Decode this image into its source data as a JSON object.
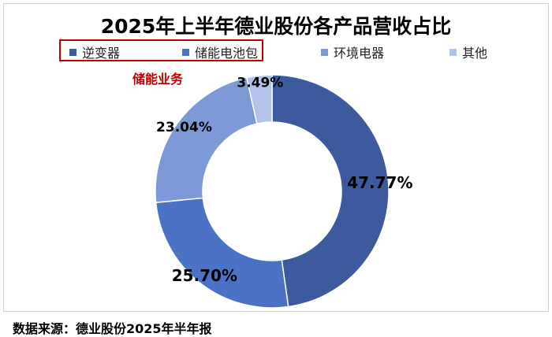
{
  "chart_data": {
    "type": "pie",
    "title": "2025年上半年德业股份各产品营收占比",
    "categories": [
      "逆变器",
      "储能电池包",
      "环境电器",
      "其他"
    ],
    "values": [
      47.77,
      25.7,
      23.04,
      3.49
    ],
    "value_labels": [
      "47.77%",
      "25.70%",
      "23.04%",
      "3.49%"
    ],
    "colors": [
      "#3c5a9e",
      "#4a73c5",
      "#7d98d6",
      "#b3c2e8"
    ],
    "legend_position": "top",
    "donut": true
  },
  "annotation": {
    "highlight_label": "储能业务",
    "highlight_color": "#c00000"
  },
  "source": "数据来源：德业股份2025年半年报"
}
